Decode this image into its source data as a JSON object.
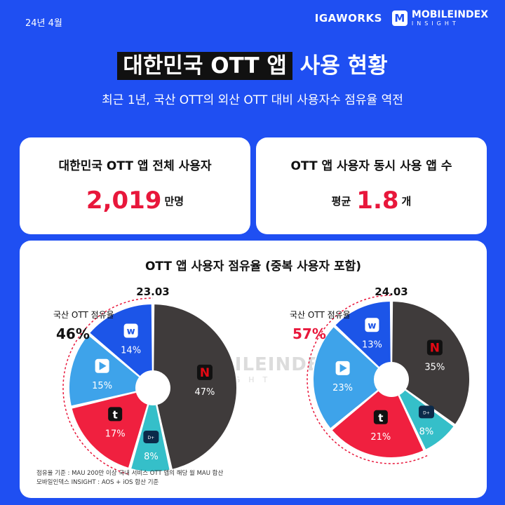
{
  "header": {
    "date": "24년 4월",
    "logo_igaworks": "IGAWORKS",
    "logo_mobileindex": "MOBILEINDEX",
    "logo_mobileindex_sub": "INSIGHT",
    "title_highlight": "대한민국 OTT 앱",
    "title_rest": " 사용 현황",
    "subtitle": "최근 1년, 국산 OTT의 외산 OTT 대비 사용자수 점유율 역전"
  },
  "stats": {
    "total_users_label": "대한민국 OTT 앱 전체 사용자",
    "total_users_value": "2,019",
    "total_users_unit": "만명",
    "concurrent_label": "OTT 앱 사용자 동시 사용 앱 수",
    "concurrent_prefix": "평균",
    "concurrent_value": "1.8",
    "concurrent_unit": "개"
  },
  "chart_section": {
    "title": "OTT 앱 사용자 점유율 (중복 사용자 포함)",
    "footnote_1": "점유율 기준 : MAU 200만 이상 국내 서비스 OTT 앱의 해당 월 MAU 합산",
    "footnote_2": "모바일인덱스 INSIGHT : AOS + iOS 합산 기준",
    "watermark_main": "MOBILEINDEX",
    "watermark_sub": "INSIGHT"
  },
  "colors": {
    "background": "#1f4ff2",
    "accent_red": "#e8173b",
    "netflix": "#3f3b3b",
    "wavve": "#1c55e8",
    "coupang_play": "#3ea3ea",
    "tving": "#f0203f",
    "disney_plus": "#35bfc9"
  },
  "chart_data": [
    {
      "type": "pie",
      "title": "23.03",
      "domestic_label": "국산 OTT 점유율",
      "domestic_share": "46%",
      "slices": [
        {
          "name": "Netflix",
          "icon": "netflix-icon",
          "value": 47,
          "label": "47%"
        },
        {
          "name": "Disney+",
          "icon": "disney-plus-icon",
          "value": 8,
          "label": "8%"
        },
        {
          "name": "TVING",
          "icon": "tving-icon",
          "value": 17,
          "label": "17%"
        },
        {
          "name": "Coupang Play",
          "icon": "coupang-play-icon",
          "value": 15,
          "label": "15%"
        },
        {
          "name": "wavve",
          "icon": "wavve-icon",
          "value": 14,
          "label": "14%"
        }
      ]
    },
    {
      "type": "pie",
      "title": "24.03",
      "domestic_label": "국산 OTT 점유율",
      "domestic_share": "57%",
      "slices": [
        {
          "name": "Netflix",
          "icon": "netflix-icon",
          "value": 35,
          "label": "35%"
        },
        {
          "name": "Disney+",
          "icon": "disney-plus-icon",
          "value": 8,
          "label": "8%"
        },
        {
          "name": "TVING",
          "icon": "tving-icon",
          "value": 21,
          "label": "21%"
        },
        {
          "name": "Coupang Play",
          "icon": "coupang-play-icon",
          "value": 23,
          "label": "23%"
        },
        {
          "name": "wavve",
          "icon": "wavve-icon",
          "value": 13,
          "label": "13%"
        }
      ]
    }
  ]
}
